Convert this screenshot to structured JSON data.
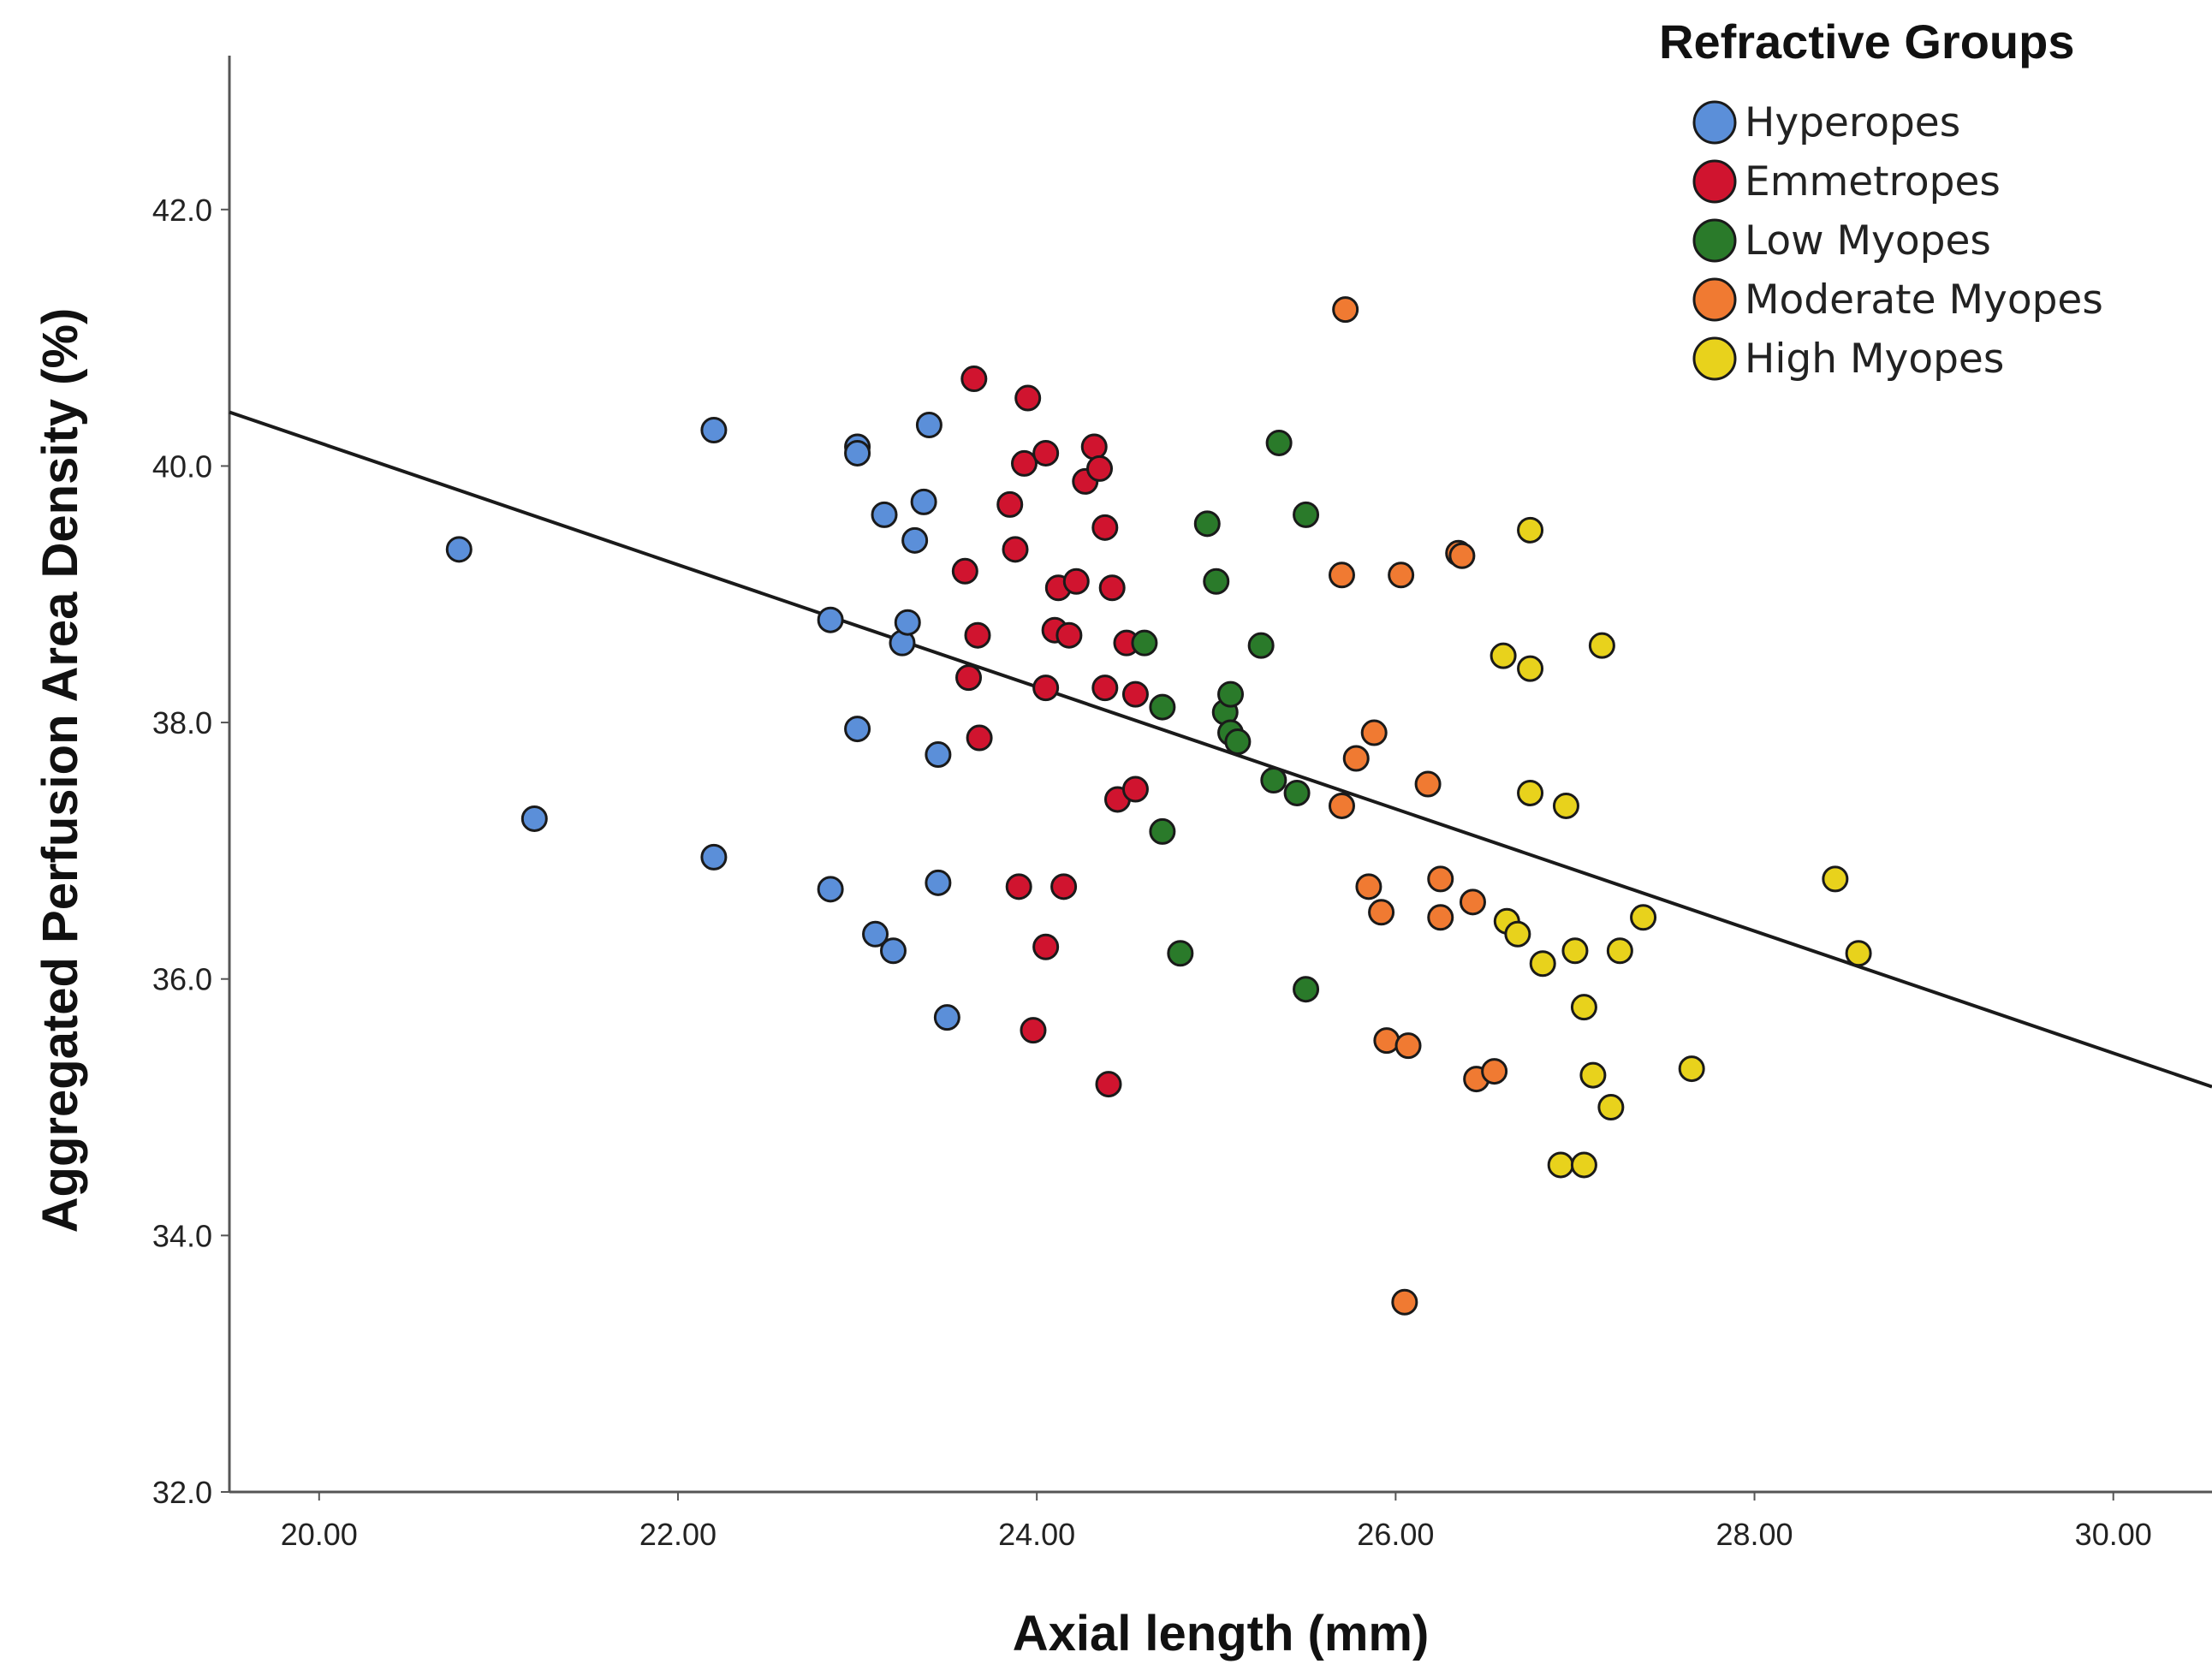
{
  "chart_data": {
    "type": "scatter",
    "title": "",
    "xlabel": "Axial length (mm)",
    "ylabel": "Aggregated Perfusion Area Density (%)",
    "xlim": [
      19.5,
      30.55
    ],
    "ylim": [
      32.0,
      43.2
    ],
    "xticks": [
      "20.00",
      "22.00",
      "24.00",
      "26.00",
      "28.00",
      "30.00"
    ],
    "yticks": [
      "32.0",
      "34.0",
      "36.0",
      "38.0",
      "40.0",
      "42.0"
    ],
    "legend_title": "Refractive Groups",
    "legend_position": "top-right",
    "fit_line": {
      "x": [
        19.5,
        30.55
      ],
      "y": [
        40.42,
        35.16
      ]
    },
    "series": [
      {
        "name": "Hyperopes",
        "color": "#5b8fd9",
        "points": [
          [
            20.78,
            39.35
          ],
          [
            21.2,
            37.25
          ],
          [
            22.2,
            40.28
          ],
          [
            22.2,
            36.95
          ],
          [
            22.85,
            38.8
          ],
          [
            22.85,
            36.7
          ],
          [
            23.0,
            40.15
          ],
          [
            23.0,
            40.1
          ],
          [
            23.0,
            37.95
          ],
          [
            23.1,
            36.35
          ],
          [
            23.15,
            39.62
          ],
          [
            23.2,
            36.22
          ],
          [
            23.25,
            38.62
          ],
          [
            23.28,
            38.78
          ],
          [
            23.32,
            39.42
          ],
          [
            23.37,
            39.72
          ],
          [
            23.4,
            40.32
          ],
          [
            23.45,
            37.75
          ],
          [
            23.45,
            36.75
          ],
          [
            23.5,
            35.7
          ]
        ]
      },
      {
        "name": "Emmetropes",
        "color": "#d0142f",
        "points": [
          [
            23.6,
            39.18
          ],
          [
            23.62,
            38.35
          ],
          [
            23.65,
            40.68
          ],
          [
            23.67,
            38.68
          ],
          [
            23.68,
            37.88
          ],
          [
            23.85,
            39.7
          ],
          [
            23.88,
            39.35
          ],
          [
            23.9,
            36.72
          ],
          [
            23.93,
            40.02
          ],
          [
            23.95,
            40.53
          ],
          [
            23.98,
            35.6
          ],
          [
            24.05,
            40.1
          ],
          [
            24.05,
            38.27
          ],
          [
            24.05,
            36.25
          ],
          [
            24.1,
            38.72
          ],
          [
            24.12,
            39.05
          ],
          [
            24.15,
            36.72
          ],
          [
            24.18,
            38.68
          ],
          [
            24.22,
            39.1
          ],
          [
            24.27,
            39.88
          ],
          [
            24.32,
            40.15
          ],
          [
            24.35,
            39.98
          ],
          [
            24.38,
            39.52
          ],
          [
            24.38,
            38.27
          ],
          [
            24.4,
            35.18
          ],
          [
            24.42,
            39.05
          ],
          [
            24.45,
            37.4
          ],
          [
            24.5,
            38.62
          ],
          [
            24.55,
            37.48
          ],
          [
            24.55,
            38.22
          ]
        ]
      },
      {
        "name": "Low Myopes",
        "color": "#2a7a2a",
        "points": [
          [
            24.6,
            38.62
          ],
          [
            24.7,
            38.12
          ],
          [
            24.7,
            37.15
          ],
          [
            24.8,
            36.2
          ],
          [
            24.95,
            39.55
          ],
          [
            25.0,
            39.1
          ],
          [
            25.05,
            38.08
          ],
          [
            25.08,
            38.22
          ],
          [
            25.08,
            37.92
          ],
          [
            25.12,
            37.85
          ],
          [
            25.25,
            38.6
          ],
          [
            25.32,
            37.55
          ],
          [
            25.35,
            40.18
          ],
          [
            25.45,
            37.45
          ],
          [
            25.5,
            39.62
          ],
          [
            25.5,
            35.92
          ]
        ]
      },
      {
        "name": "Moderate Myopes",
        "color": "#f07a32",
        "points": [
          [
            25.72,
            41.22
          ],
          [
            25.7,
            39.15
          ],
          [
            25.7,
            37.35
          ],
          [
            25.78,
            37.72
          ],
          [
            25.85,
            36.72
          ],
          [
            25.88,
            37.92
          ],
          [
            25.92,
            36.52
          ],
          [
            25.95,
            35.52
          ],
          [
            26.03,
            39.15
          ],
          [
            26.05,
            33.48
          ],
          [
            26.07,
            35.48
          ],
          [
            26.18,
            37.52
          ],
          [
            26.25,
            36.78
          ],
          [
            26.25,
            36.48
          ],
          [
            26.35,
            39.32
          ],
          [
            26.37,
            39.3
          ],
          [
            26.43,
            36.6
          ],
          [
            26.45,
            35.22
          ],
          [
            26.55,
            35.28
          ]
        ]
      },
      {
        "name": "High Myopes",
        "color": "#e8d21c",
        "points": [
          [
            26.6,
            38.52
          ],
          [
            26.62,
            36.45
          ],
          [
            26.68,
            36.35
          ],
          [
            26.75,
            39.5
          ],
          [
            26.75,
            38.42
          ],
          [
            26.75,
            37.45
          ],
          [
            26.82,
            36.12
          ],
          [
            26.92,
            34.55
          ],
          [
            26.95,
            37.35
          ],
          [
            27.0,
            36.22
          ],
          [
            27.05,
            35.78
          ],
          [
            27.05,
            34.55
          ],
          [
            27.1,
            35.25
          ],
          [
            27.15,
            38.6
          ],
          [
            27.2,
            35.0
          ],
          [
            27.25,
            36.22
          ],
          [
            27.38,
            36.48
          ],
          [
            27.65,
            35.3
          ],
          [
            28.45,
            36.78
          ],
          [
            28.58,
            36.2
          ]
        ]
      }
    ]
  }
}
